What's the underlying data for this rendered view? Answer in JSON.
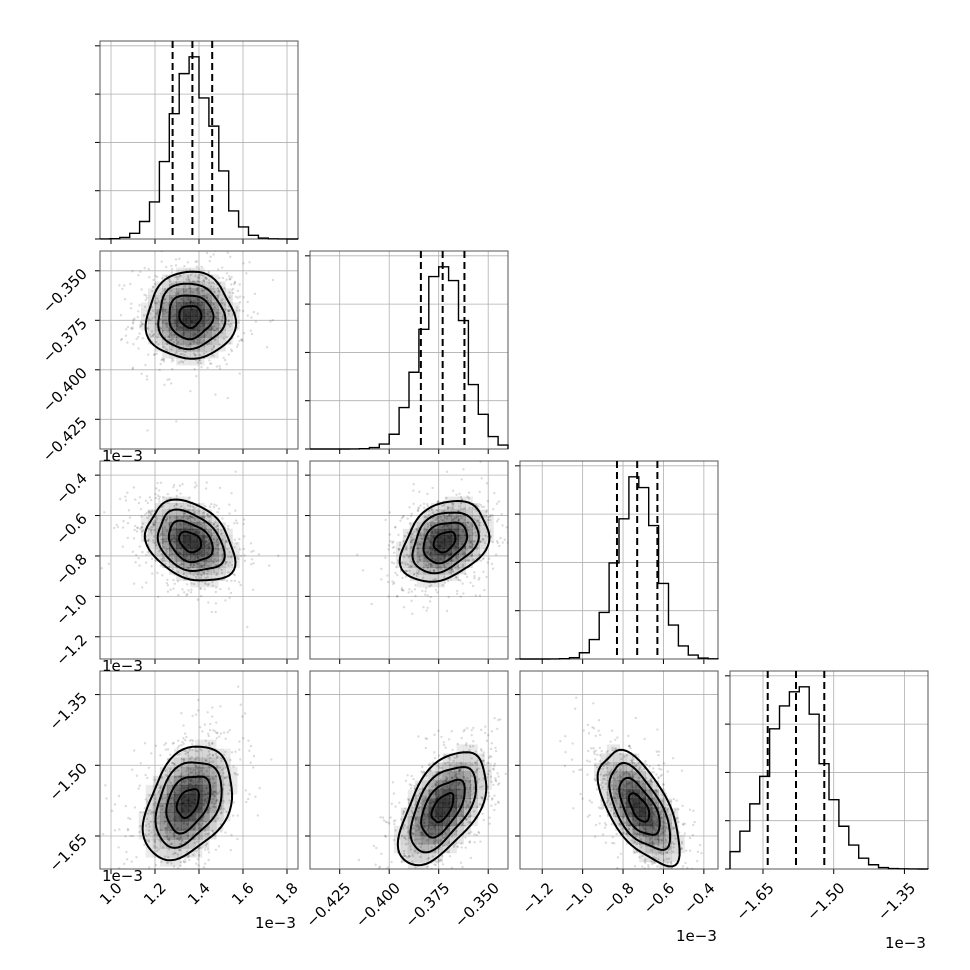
{
  "chart_data": {
    "type": "corner",
    "grid": true,
    "params": [
      {
        "median": 0.00137,
        "q16": 0.00128,
        "q84": 0.00146,
        "sigma": 0.0001,
        "range": [
          0.00095,
          0.00185
        ],
        "ticks": [
          0.001,
          0.0012,
          0.0014,
          0.0016,
          0.0018
        ],
        "tick_labels": [
          "1.0",
          "1.2",
          "1.4",
          "1.6",
          "1.8"
        ],
        "offset": "1e−3"
      },
      {
        "median": -0.000373,
        "q16": -0.000384,
        "q84": -0.000362,
        "sigma": 1.1e-05,
        "range": [
          -0.00044,
          -0.00034
        ],
        "ticks": [
          -0.000425,
          -0.0004,
          -0.000375,
          -0.00035
        ],
        "tick_labels": [
          "−0.425",
          "−0.400",
          "−0.375",
          "−0.350"
        ],
        "offset": "1e−3"
      },
      {
        "median": -0.00073,
        "q16": -0.00083,
        "q84": -0.00063,
        "sigma": 0.0001,
        "range": [
          -0.00131,
          -0.00033
        ],
        "ticks": [
          -0.0012,
          -0.001,
          -0.0008,
          -0.0006,
          -0.0004
        ],
        "tick_labels": [
          "−1.2",
          "−1.0",
          "−0.8",
          "−0.6",
          "−0.4"
        ],
        "offset": "1e−3"
      },
      {
        "median": -0.00158,
        "q16": -0.00164,
        "q84": -0.00152,
        "sigma": 6e-05,
        "range": [
          -0.00172,
          -0.0013
        ],
        "ticks": [
          -0.00165,
          -0.0015,
          -0.00135
        ],
        "tick_labels": [
          "−1.65",
          "−1.50",
          "−1.35"
        ],
        "offset": "1e−3"
      }
    ],
    "pairs": [
      {
        "row": 1,
        "col": 0,
        "mean": [
          0.00136,
          -0.000373
        ],
        "corr": 0.0,
        "scatter_count": 800
      },
      {
        "row": 2,
        "col": 0,
        "mean": [
          0.00136,
          -0.00073
        ],
        "corr": -0.3,
        "scatter_count": 800
      },
      {
        "row": 2,
        "col": 1,
        "mean": [
          -0.000372,
          -0.00073
        ],
        "corr": 0.3,
        "scatter_count": 800
      },
      {
        "row": 3,
        "col": 0,
        "mean": [
          0.00135,
          -0.00158
        ],
        "corr": 0.35,
        "scatter_count": 800
      },
      {
        "row": 3,
        "col": 1,
        "mean": [
          -0.000373,
          -0.00159
        ],
        "corr": 0.55,
        "scatter_count": 800
      },
      {
        "row": 3,
        "col": 2,
        "mean": [
          -0.00072,
          -0.00159
        ],
        "corr": -0.6,
        "scatter_count": 800
      }
    ],
    "histogram": {
      "bins": 20,
      "y_ticks": 4
    }
  }
}
